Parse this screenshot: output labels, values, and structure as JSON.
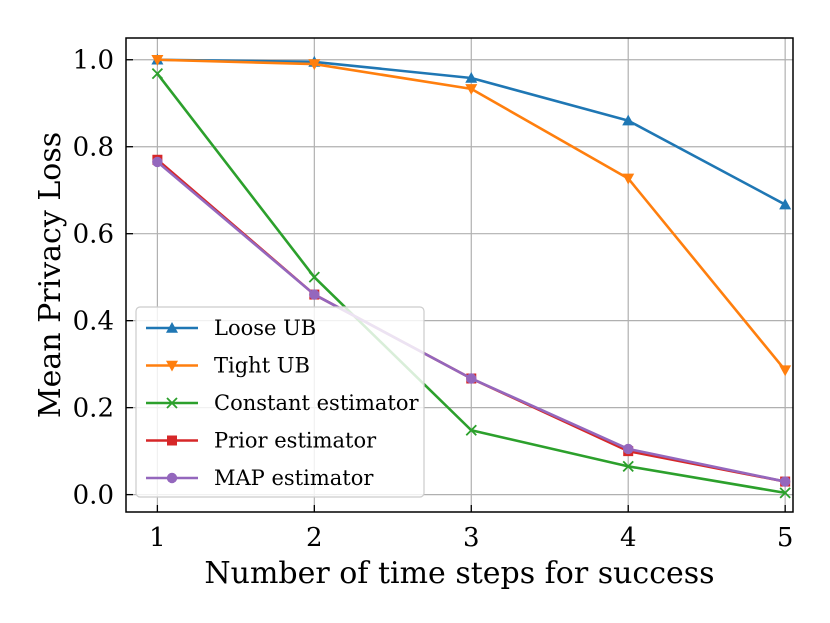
{
  "chart_data": {
    "type": "line",
    "title": "",
    "xlabel": "Number of time steps for success",
    "ylabel": "Mean Privacy Loss",
    "x": [
      1,
      2,
      3,
      4,
      5
    ],
    "xticks": [
      "1",
      "2",
      "3",
      "4",
      "5"
    ],
    "yticks": [
      "0.0",
      "0.2",
      "0.4",
      "0.6",
      "0.8",
      "1.0"
    ],
    "xlim": [
      0.8,
      5.05
    ],
    "ylim": [
      -0.04,
      1.05
    ],
    "grid": true,
    "legend_position": "lower-left",
    "series": [
      {
        "name": "Loose UB",
        "color": "#1f77b4",
        "marker": "triangle-up",
        "values": [
          1.0,
          0.995,
          0.958,
          0.86,
          0.667
        ]
      },
      {
        "name": "Tight UB",
        "color": "#ff7f0e",
        "marker": "triangle-down",
        "values": [
          1.0,
          0.99,
          0.933,
          0.727,
          0.286
        ]
      },
      {
        "name": "Constant estimator",
        "color": "#2ca02c",
        "marker": "x",
        "values": [
          0.968,
          0.5,
          0.148,
          0.065,
          0.004
        ]
      },
      {
        "name": "Prior estimator",
        "color": "#d62728",
        "marker": "square",
        "values": [
          0.77,
          0.46,
          0.267,
          0.1,
          0.03
        ]
      },
      {
        "name": "MAP estimator",
        "color": "#9467bd",
        "marker": "circle",
        "values": [
          0.765,
          0.46,
          0.267,
          0.105,
          0.03
        ]
      }
    ]
  }
}
